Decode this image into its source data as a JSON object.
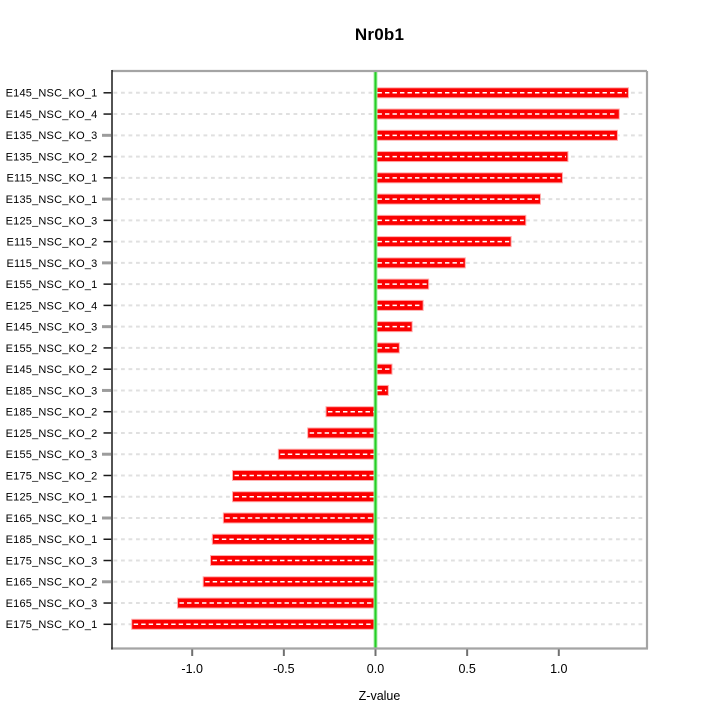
{
  "chart_data": {
    "type": "bar",
    "orientation": "horizontal",
    "title": "Nr0b1",
    "xlabel": "Z-value",
    "ylabel": "",
    "categories": [
      "E145_NSC_KO_1",
      "E145_NSC_KO_4",
      "E135_NSC_KO_3",
      "E135_NSC_KO_2",
      "E115_NSC_KO_1",
      "E135_NSC_KO_1",
      "E125_NSC_KO_3",
      "E115_NSC_KO_2",
      "E115_NSC_KO_3",
      "E155_NSC_KO_1",
      "E125_NSC_KO_4",
      "E145_NSC_KO_3",
      "E155_NSC_KO_2",
      "E145_NSC_KO_2",
      "E185_NSC_KO_3",
      "E185_NSC_KO_2",
      "E125_NSC_KO_2",
      "E155_NSC_KO_3",
      "E175_NSC_KO_2",
      "E125_NSC_KO_1",
      "E165_NSC_KO_1",
      "E185_NSC_KO_1",
      "E175_NSC_KO_3",
      "E165_NSC_KO_2",
      "E165_NSC_KO_3",
      "E175_NSC_KO_1"
    ],
    "values": [
      1.38,
      1.33,
      1.32,
      1.05,
      1.02,
      0.9,
      0.82,
      0.74,
      0.49,
      0.29,
      0.26,
      0.2,
      0.13,
      0.09,
      0.07,
      -0.27,
      -0.37,
      -0.53,
      -0.78,
      -0.78,
      -0.83,
      -0.89,
      -0.9,
      -0.94,
      -1.08,
      -1.33
    ],
    "x_ticks": [
      -1.0,
      -0.5,
      0.0,
      0.5,
      1.0
    ],
    "x_tick_labels": [
      "-1.0",
      "-0.5",
      "0.0",
      "0.5",
      "1.0"
    ],
    "xlim": [
      -1.44,
      1.48
    ],
    "grid": true,
    "zero_line": true,
    "legend_position": "none",
    "colors": {
      "bar_fill": "#fb0000",
      "bar_border": "#ffaaaa",
      "bar_center_dash": "#ffffff",
      "zero_line": "#25ce25",
      "zero_line_halo": "#a8efa8",
      "gridline": "#e0e0e0",
      "frame": "#a4a4a4",
      "y_axis": "#1a1a1a",
      "gray_tick": "#9c9c9c",
      "x_tick": "#707070",
      "text": "#000000"
    }
  }
}
